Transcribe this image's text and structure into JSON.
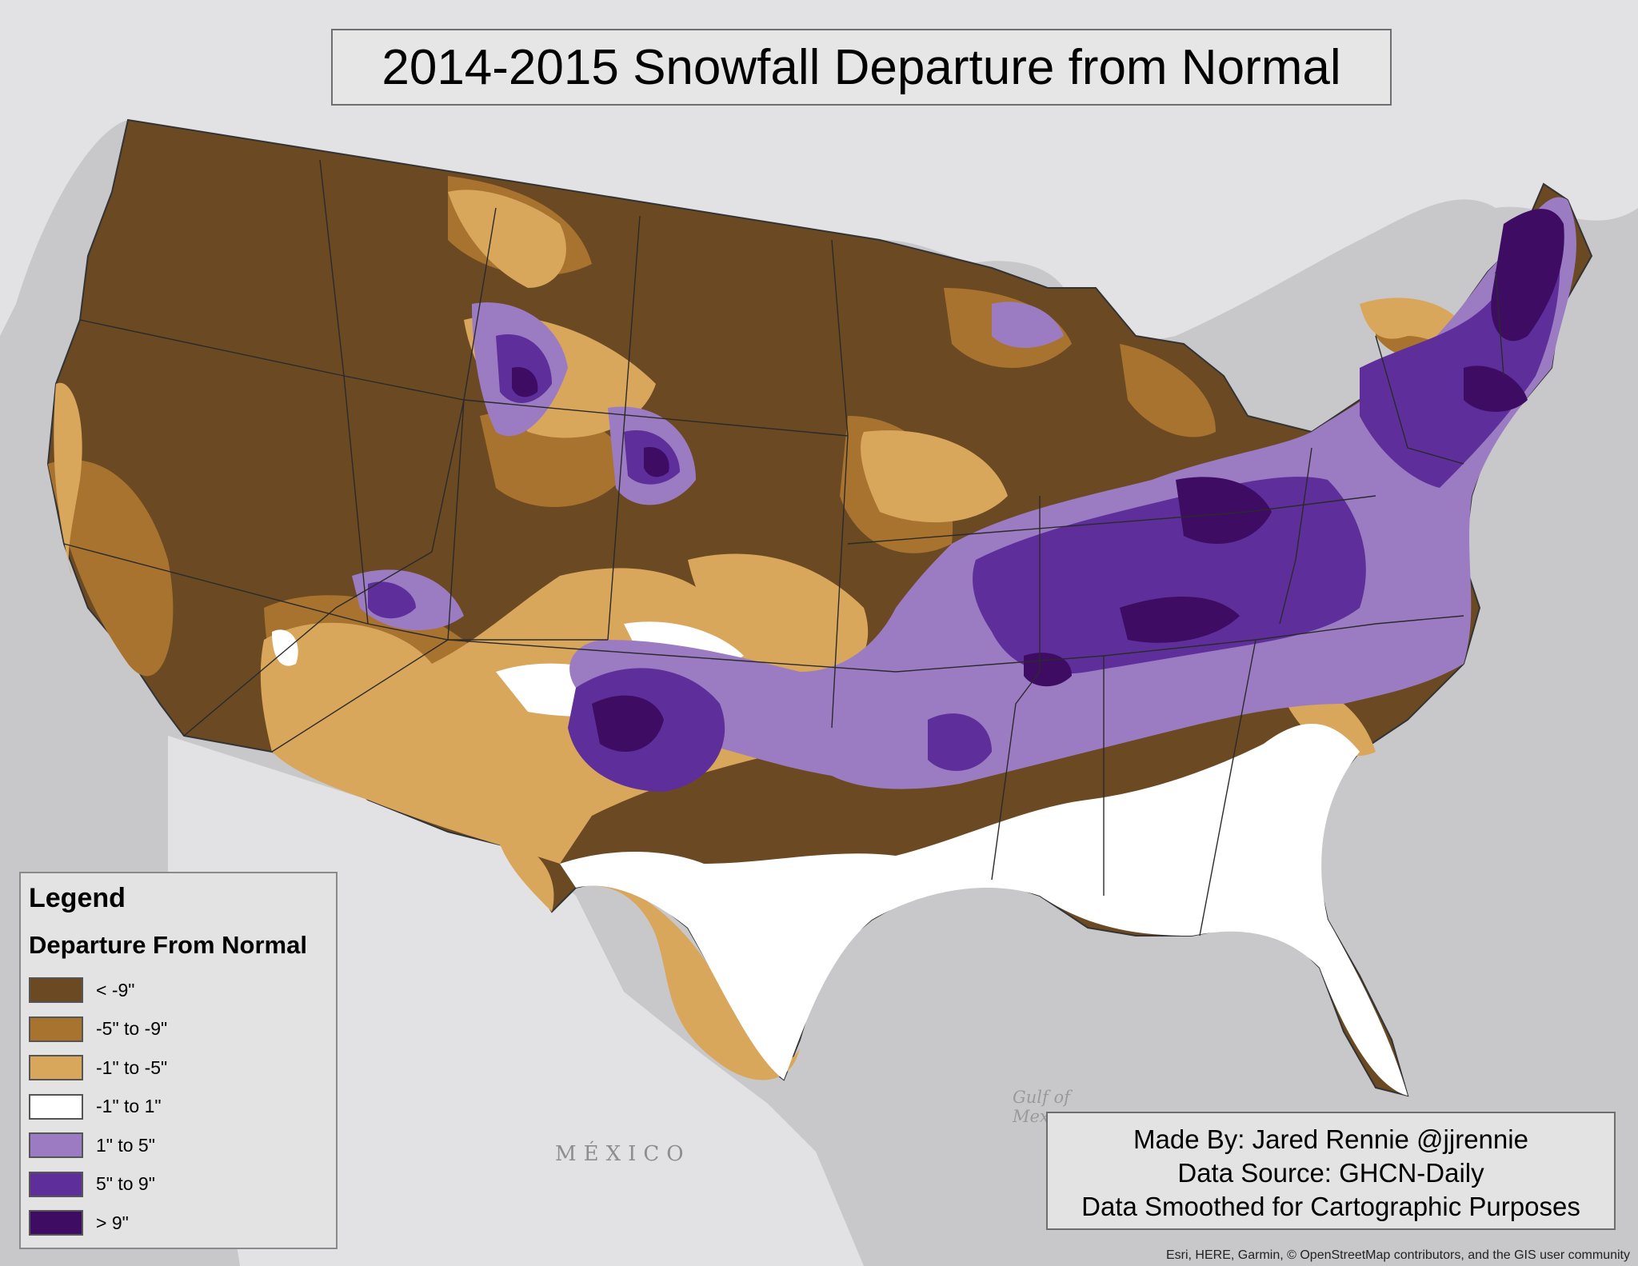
{
  "title": "2014-2015 Snowfall Departure from Normal",
  "legend": {
    "title": "Legend",
    "subtitle": "Departure From Normal",
    "items": [
      {
        "label": "< -9\"",
        "color": "#6b4a23"
      },
      {
        "label": "-5\" to -9\"",
        "color": "#a8732f"
      },
      {
        "label": "-1\" to -5\"",
        "color": "#d9a75c"
      },
      {
        "label": "-1\" to 1\"",
        "color": "#ffffff"
      },
      {
        "label": "1\" to 5\"",
        "color": "#9b7cc2"
      },
      {
        "label": "5\" to 9\"",
        "color": "#5e2f9a"
      },
      {
        "label": "> 9\"",
        "color": "#3e0d63"
      }
    ]
  },
  "credits": {
    "line1": "Made By: Jared Rennie @jjrennie",
    "line2": "Data Source: GHCN-Daily",
    "line3": "Data Smoothed for Cartographic Purposes"
  },
  "attribution": "Esri, HERE, Garmin, © OpenStreetMap contributors, and the GIS user community",
  "basemap_labels": {
    "mexico": "MÉXICO",
    "gulf_line1": "Gulf of",
    "gulf_line2": "Mex"
  }
}
